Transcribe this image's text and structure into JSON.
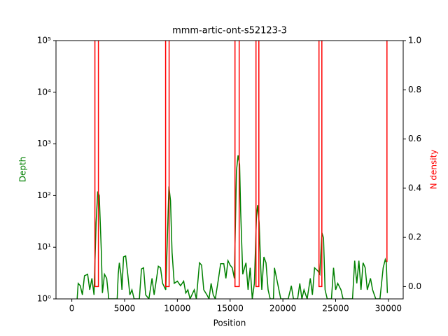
{
  "chart_data": {
    "type": "line",
    "title": "mmm-artic-ont-s52123-3",
    "xlabel": "Position",
    "ylabel": "Depth",
    "y2label": "N density",
    "ylog": true,
    "x": [
      500,
      600,
      800,
      1000,
      1200,
      1500,
      1700,
      1900,
      2100,
      2300,
      2450,
      2600,
      2800,
      2900,
      3100,
      3300,
      3500,
      4300,
      4400,
      4500,
      4650,
      4750,
      4900,
      5100,
      5300,
      5500,
      5700,
      5900,
      6400,
      6600,
      6800,
      7000,
      7300,
      7600,
      7800,
      8200,
      8400,
      8600,
      8900,
      9100,
      9200,
      9350,
      9500,
      9700,
      10000,
      10300,
      10600,
      10800,
      11000,
      11200,
      11600,
      11800,
      12100,
      12300,
      12500,
      12800,
      13000,
      13200,
      13400,
      13600,
      13900,
      14100,
      14400,
      14600,
      14800,
      15000,
      15200,
      15400,
      15600,
      15750,
      15900,
      16000,
      16200,
      16500,
      16700,
      16900,
      17100,
      17300,
      17500,
      17600,
      17750,
      17900,
      18000,
      18200,
      18400,
      18600,
      18800,
      19100,
      19200,
      19500,
      19800,
      20500,
      20800,
      21000,
      21400,
      21600,
      21800,
      22000,
      22300,
      22600,
      22800,
      23000,
      23300,
      23500,
      23700,
      23850,
      24000,
      24200,
      24600,
      24800,
      25000,
      25200,
      25500,
      25700,
      26600,
      26800,
      27000,
      27200,
      27400,
      27600,
      27800,
      28000,
      28300,
      28500,
      28800,
      29200,
      29500,
      29700,
      29800,
      29900
    ],
    "series": [
      {
        "name": "Depth",
        "color": "#008000",
        "values": [
          1.0,
          2.0,
          1.8,
          1.2,
          2.8,
          3.0,
          1.5,
          2.5,
          1.2,
          30,
          120,
          100,
          8,
          1.3,
          3.0,
          2.5,
          1.0,
          1.0,
          3,
          5,
          3,
          1.5,
          6.5,
          6.8,
          3,
          1.2,
          1.5,
          1.0,
          1.0,
          3.8,
          4,
          1.2,
          1.0,
          2.5,
          1.2,
          4.3,
          4,
          2,
          1.5,
          30,
          150,
          80,
          8,
          2,
          2.2,
          1.8,
          2.2,
          1.3,
          1.5,
          1.0,
          1.5,
          1.0,
          5,
          4.5,
          1.5,
          1.2,
          1.0,
          2,
          1.2,
          1.0,
          2.5,
          4.8,
          4.8,
          2.5,
          5.5,
          4.5,
          4.0,
          2.5,
          300,
          600,
          400,
          50,
          3,
          5,
          1.5,
          4,
          1.0,
          2,
          40,
          65,
          30,
          4,
          1.5,
          6.5,
          5,
          1.5,
          1.0,
          1.0,
          4,
          2,
          1.0,
          1.0,
          1.8,
          1.0,
          1.0,
          2,
          1.0,
          1.5,
          1.0,
          2.5,
          1.2,
          4,
          3.5,
          3,
          19,
          15,
          1.5,
          1.0,
          1.0,
          4,
          1.5,
          2,
          1.5,
          1.0,
          1.0,
          5.5,
          2,
          5.5,
          1.5,
          5,
          4,
          1.5,
          2.5,
          1.5,
          1.0,
          1.0,
          4,
          5.8,
          5,
          1.3
        ]
      },
      {
        "name": "N density",
        "color": "#ff0000",
        "axis": "y2",
        "x": [
          2190,
          2190,
          2520,
          2520,
          null,
          8890,
          8890,
          9220,
          9220,
          null,
          15460,
          15460,
          15860,
          15860,
          null,
          17450,
          17450,
          17720,
          17720,
          null,
          23420,
          23420,
          23690,
          23690,
          null,
          29860,
          29860
        ],
        "values": [
          1,
          0,
          0,
          1,
          null,
          1,
          0,
          0,
          1,
          null,
          1,
          0,
          0,
          1,
          null,
          1,
          0,
          0,
          1,
          null,
          1,
          0,
          0,
          1,
          null,
          1,
          0.1
        ]
      }
    ],
    "xlim": [
      -1500,
      31400
    ],
    "xticks": [
      0,
      5000,
      10000,
      15000,
      20000,
      25000,
      30000
    ],
    "ylim": [
      1,
      100000
    ],
    "yticks": [
      {
        "value": 1,
        "label": "10⁰"
      },
      {
        "value": 10,
        "label": "10¹"
      },
      {
        "value": 100,
        "label": "10²"
      },
      {
        "value": 1000,
        "label": "10³"
      },
      {
        "value": 10000,
        "label": "10⁴"
      },
      {
        "value": 100000,
        "label": "10⁵"
      }
    ],
    "y2lim": [
      -0.05,
      1.0
    ],
    "y2ticks": [
      {
        "value": 0,
        "label": "0.0"
      },
      0.2,
      0.4,
      0.6,
      0.8,
      {
        "value": 1,
        "label": "1.0"
      }
    ]
  }
}
